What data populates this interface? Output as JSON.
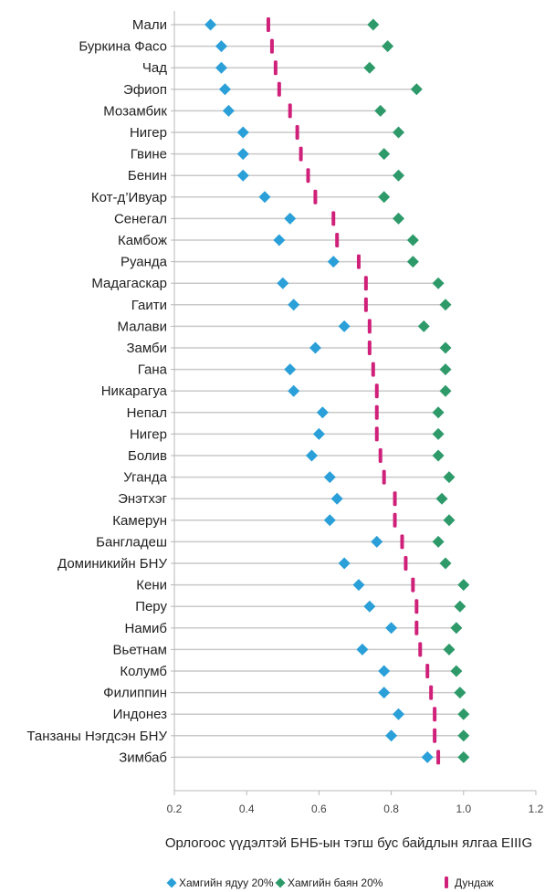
{
  "chart_data": {
    "type": "dot-plot",
    "xlabel": "Орлогоос үүдэлтэй БНБ-ын тэгш бус байдлын ялгаа EIIIG",
    "xlim": [
      0.2,
      1.2
    ],
    "xticks": [
      "0.2",
      "0.4",
      "0.6",
      "0.8",
      "1.0",
      "1.2"
    ],
    "xtick_values": [
      0.2,
      0.4,
      0.6,
      0.8,
      1.0,
      1.2
    ],
    "grid": false,
    "legend_position": "bottom-right",
    "categories": [
      "Мали",
      "Буркина Фасо",
      "Чад",
      "Эфиоп",
      "Мозамбик",
      "Нигер",
      "Гвине",
      "Бенин",
      "Кот-д’Ивуар",
      "Сенегал",
      "Камбож",
      "Руанда",
      "Мадагаскар",
      "Гаити",
      "Малави",
      "Замби",
      "Гана",
      "Никарагуа",
      "Непал",
      "Нигер",
      "Болив",
      "Уганда",
      "Энэтхэг",
      "Камерун",
      "Бангладеш",
      "Доминикийн БНУ",
      "Кени",
      "Перу",
      "Намиб",
      "Вьетнам",
      "Колумб",
      "Филиппин",
      "Индонез",
      "Танзаны Нэгдсэн БНУ",
      "Зимбаб"
    ],
    "series": [
      {
        "name": "Хамгийн ядуу 20%",
        "color": "#2a9fd8",
        "marker": "diamond",
        "values": [
          0.3,
          0.33,
          0.33,
          0.34,
          0.35,
          0.39,
          0.39,
          0.39,
          0.45,
          0.52,
          0.49,
          0.64,
          0.5,
          0.53,
          0.67,
          0.59,
          0.52,
          0.53,
          0.61,
          0.6,
          0.58,
          0.63,
          0.65,
          0.63,
          0.76,
          0.67,
          0.71,
          0.74,
          0.8,
          0.72,
          0.78,
          0.78,
          0.82,
          0.8,
          0.9
        ]
      },
      {
        "name": "Хамгийн баян 20%",
        "color": "#2e9a6a",
        "marker": "diamond",
        "values": [
          0.75,
          0.79,
          0.74,
          0.87,
          0.77,
          0.82,
          0.78,
          0.82,
          0.78,
          0.82,
          0.86,
          0.86,
          0.93,
          0.95,
          0.89,
          0.95,
          0.95,
          0.95,
          0.93,
          0.93,
          0.93,
          0.96,
          0.94,
          0.96,
          0.93,
          0.95,
          1.0,
          0.99,
          0.98,
          0.96,
          0.98,
          0.99,
          1.0,
          1.0,
          1.0
        ]
      },
      {
        "name": "Дундаж",
        "color": "#d0217a",
        "marker": "bar",
        "values": [
          0.46,
          0.47,
          0.48,
          0.49,
          0.52,
          0.54,
          0.55,
          0.57,
          0.59,
          0.64,
          0.65,
          0.71,
          0.73,
          0.73,
          0.74,
          0.74,
          0.75,
          0.76,
          0.76,
          0.76,
          0.77,
          0.78,
          0.81,
          0.81,
          0.83,
          0.84,
          0.86,
          0.87,
          0.87,
          0.88,
          0.9,
          0.91,
          0.92,
          0.92,
          0.93
        ]
      }
    ]
  }
}
